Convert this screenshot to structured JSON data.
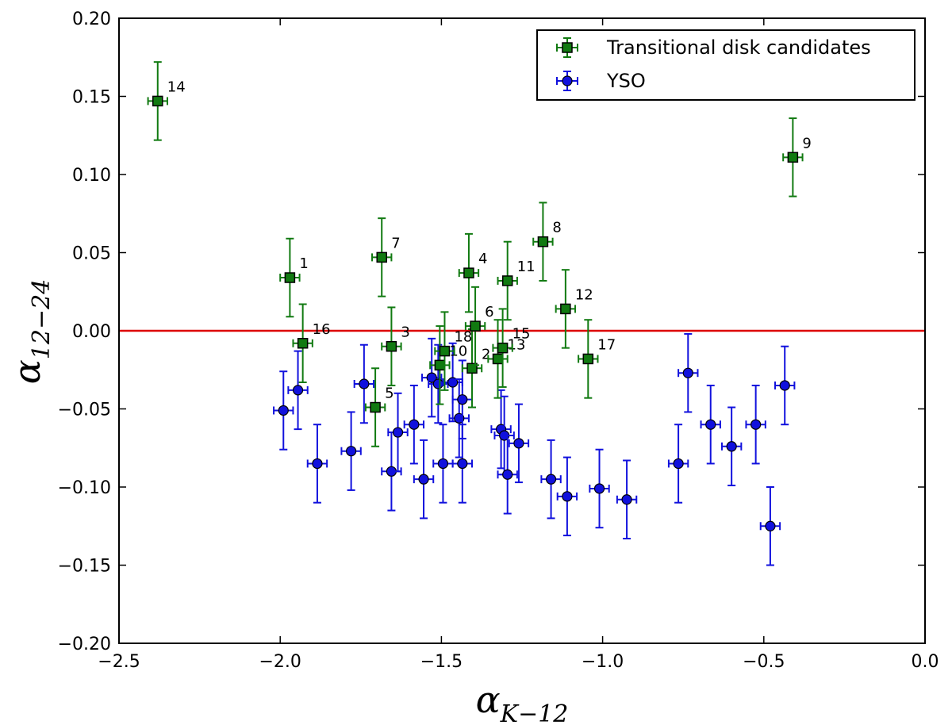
{
  "chart_data": {
    "type": "scatter",
    "xlabel": "α",
    "xlabel_sub": "K−12",
    "ylabel": "α",
    "ylabel_sub": "12−24",
    "xlim": [
      -2.5,
      0.0
    ],
    "ylim": [
      -0.2,
      0.2
    ],
    "x_ticks": [
      -2.5,
      -2.0,
      -1.5,
      -1.0,
      -0.5,
      0.0
    ],
    "x_tick_labels": [
      "−2.5",
      "−2.0",
      "−1.5",
      "−1.0",
      "−0.5",
      "0.0"
    ],
    "y_ticks": [
      -0.2,
      -0.15,
      -0.1,
      -0.05,
      0.0,
      0.05,
      0.1,
      0.15,
      0.2
    ],
    "y_tick_labels": [
      "−0.20",
      "−0.15",
      "−0.10",
      "−0.05",
      "0.00",
      "0.05",
      "0.10",
      "0.15",
      "0.20"
    ],
    "grid": false,
    "legend_position": "top-right",
    "reference_line": {
      "y": 0.0,
      "color": "#dd0000"
    },
    "series": [
      {
        "name": "Transitional disk candidates",
        "marker": "square",
        "color": "#117a11",
        "xerr": 0.03,
        "yerr": 0.025,
        "points": [
          {
            "label": "1",
            "x": -1.97,
            "y": 0.034
          },
          {
            "label": "2",
            "x": -1.405,
            "y": -0.024
          },
          {
            "label": "3",
            "x": -1.655,
            "y": -0.01
          },
          {
            "label": "4",
            "x": -1.415,
            "y": 0.037
          },
          {
            "label": "5",
            "x": -1.705,
            "y": -0.049
          },
          {
            "label": "6",
            "x": -1.395,
            "y": 0.003
          },
          {
            "label": "7",
            "x": -1.685,
            "y": 0.047
          },
          {
            "label": "8",
            "x": -1.185,
            "y": 0.057
          },
          {
            "label": "9",
            "x": -0.41,
            "y": 0.111
          },
          {
            "label": "10",
            "x": -1.505,
            "y": -0.022
          },
          {
            "label": "11",
            "x": -1.295,
            "y": 0.032
          },
          {
            "label": "12",
            "x": -1.115,
            "y": 0.014
          },
          {
            "label": "13",
            "x": -1.325,
            "y": -0.018
          },
          {
            "label": "14",
            "x": -2.38,
            "y": 0.147
          },
          {
            "label": "15",
            "x": -1.31,
            "y": -0.011
          },
          {
            "label": "16",
            "x": -1.93,
            "y": -0.008
          },
          {
            "label": "17",
            "x": -1.045,
            "y": -0.018
          },
          {
            "label": "18",
            "x": -1.49,
            "y": -0.013
          }
        ]
      },
      {
        "name": "YSO",
        "marker": "circle",
        "color": "#1111dd",
        "xerr": 0.03,
        "yerr": 0.025,
        "points": [
          {
            "x": -1.99,
            "y": -0.051
          },
          {
            "x": -1.945,
            "y": -0.038
          },
          {
            "x": -1.885,
            "y": -0.085
          },
          {
            "x": -1.78,
            "y": -0.077
          },
          {
            "x": -1.74,
            "y": -0.034
          },
          {
            "x": -1.655,
            "y": -0.09
          },
          {
            "x": -1.635,
            "y": -0.065
          },
          {
            "x": -1.585,
            "y": -0.06
          },
          {
            "x": -1.555,
            "y": -0.095
          },
          {
            "x": -1.53,
            "y": -0.03
          },
          {
            "x": -1.51,
            "y": -0.034
          },
          {
            "x": -1.495,
            "y": -0.085
          },
          {
            "x": -1.465,
            "y": -0.033
          },
          {
            "x": -1.445,
            "y": -0.056
          },
          {
            "x": -1.435,
            "y": -0.044
          },
          {
            "x": -1.435,
            "y": -0.085
          },
          {
            "x": -1.315,
            "y": -0.063
          },
          {
            "x": -1.305,
            "y": -0.067
          },
          {
            "x": -1.295,
            "y": -0.092
          },
          {
            "x": -1.26,
            "y": -0.072
          },
          {
            "x": -1.16,
            "y": -0.095
          },
          {
            "x": -1.11,
            "y": -0.106
          },
          {
            "x": -1.01,
            "y": -0.101
          },
          {
            "x": -0.925,
            "y": -0.108
          },
          {
            "x": -0.765,
            "y": -0.085
          },
          {
            "x": -0.735,
            "y": -0.027
          },
          {
            "x": -0.665,
            "y": -0.06
          },
          {
            "x": -0.6,
            "y": -0.074
          },
          {
            "x": -0.525,
            "y": -0.06
          },
          {
            "x": -0.48,
            "y": -0.125
          },
          {
            "x": -0.435,
            "y": -0.035
          }
        ]
      }
    ]
  }
}
